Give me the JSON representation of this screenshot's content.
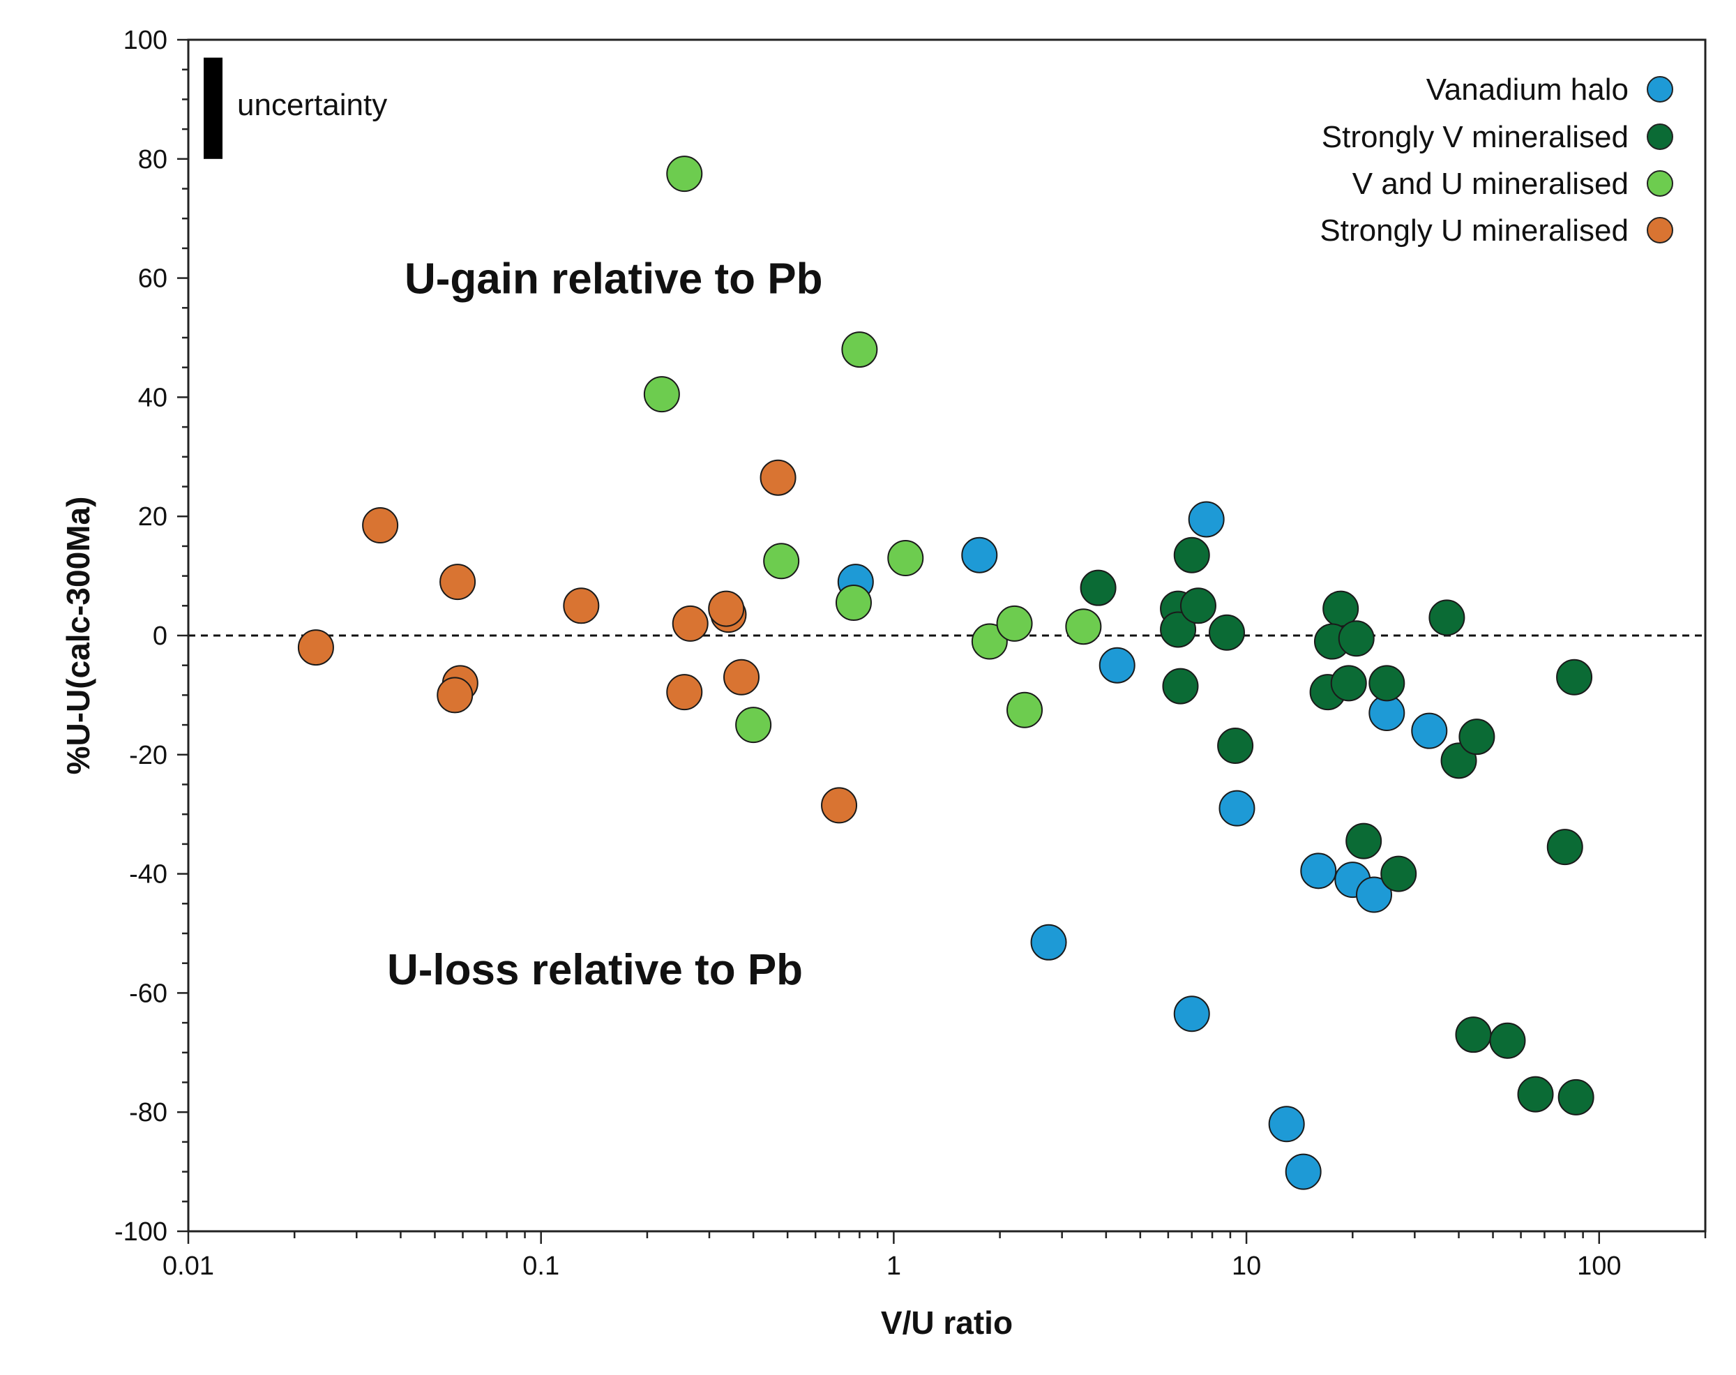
{
  "chart_data": {
    "type": "scatter",
    "xscale": "log",
    "xlim": [
      0.01,
      200
    ],
    "ylim": [
      -100,
      100
    ],
    "xlabel": "V/U ratio",
    "ylabel": "%U-U(calc-300Ma)",
    "x_ticks": [
      0.01,
      0.1,
      1,
      10,
      100
    ],
    "x_tick_labels": [
      "0.01",
      "0.1",
      "1",
      "10",
      "100"
    ],
    "y_ticks": [
      100,
      80,
      60,
      40,
      20,
      0,
      -20,
      -40,
      -60,
      -80,
      -100
    ],
    "y_tick_labels": [
      "100",
      "80",
      "60",
      "40",
      "20",
      "0",
      "-20",
      "-40",
      "-60",
      "-80",
      "-100"
    ],
    "reference_line": {
      "y": 0,
      "style": "dashed"
    },
    "annotations": [
      {
        "text": "U-gain relative to Pb",
        "x": 0.12,
        "y": 60
      },
      {
        "text": "U-loss relative to Pb",
        "x": 0.11,
        "y": -56
      }
    ],
    "uncertainty": {
      "label": "uncertainty",
      "y_from": 80,
      "y_to": 97
    },
    "legend_position": "top-right",
    "series": [
      {
        "name": "Vanadium halo",
        "color": "#1e9ad6",
        "points": [
          [
            0.78,
            9
          ],
          [
            1.75,
            13.5
          ],
          [
            7.7,
            19.5
          ],
          [
            4.3,
            -5
          ],
          [
            9.4,
            -29
          ],
          [
            2.75,
            -51.5
          ],
          [
            7.0,
            -63.5
          ],
          [
            16,
            -39.5
          ],
          [
            20,
            -41
          ],
          [
            23,
            -43.5
          ],
          [
            25,
            -13
          ],
          [
            33,
            -16
          ],
          [
            13,
            -82
          ],
          [
            14.5,
            -90
          ]
        ]
      },
      {
        "name": "Strongly V mineralised",
        "color": "#0b6b35",
        "points": [
          [
            3.8,
            8
          ],
          [
            6.4,
            4.5
          ],
          [
            6.4,
            1
          ],
          [
            7.0,
            13.5
          ],
          [
            7.3,
            5
          ],
          [
            8.8,
            0.5
          ],
          [
            6.5,
            -8.5
          ],
          [
            9.3,
            -18.5
          ],
          [
            18.5,
            4.5
          ],
          [
            17.5,
            -1
          ],
          [
            20.5,
            -0.5
          ],
          [
            17,
            -9.5
          ],
          [
            19.5,
            -8
          ],
          [
            25,
            -8
          ],
          [
            21.5,
            -34.5
          ],
          [
            27,
            -40
          ],
          [
            37,
            3
          ],
          [
            40,
            -21
          ],
          [
            45,
            -17
          ],
          [
            85,
            -7
          ],
          [
            80,
            -35.5
          ],
          [
            44,
            -67
          ],
          [
            55,
            -68
          ],
          [
            66,
            -77
          ],
          [
            86,
            -77.5
          ]
        ]
      },
      {
        "name": "V and U mineralised",
        "color": "#6dcc4f",
        "points": [
          [
            0.255,
            77.5
          ],
          [
            0.22,
            40.5
          ],
          [
            0.8,
            48
          ],
          [
            0.48,
            12.5
          ],
          [
            0.77,
            5.5
          ],
          [
            1.08,
            13
          ],
          [
            0.4,
            -15
          ],
          [
            1.87,
            -1
          ],
          [
            2.2,
            2
          ],
          [
            2.35,
            -12.5
          ],
          [
            3.45,
            1.5
          ]
        ]
      },
      {
        "name": "Strongly U mineralised",
        "color": "#d97432",
        "points": [
          [
            0.023,
            -2
          ],
          [
            0.035,
            18.5
          ],
          [
            0.058,
            9
          ],
          [
            0.059,
            -8
          ],
          [
            0.057,
            -10
          ],
          [
            0.13,
            5
          ],
          [
            0.255,
            -9.5
          ],
          [
            0.265,
            2
          ],
          [
            0.34,
            3.5
          ],
          [
            0.335,
            4.5
          ],
          [
            0.37,
            -7
          ],
          [
            0.47,
            26.5
          ],
          [
            0.7,
            -28.5
          ]
        ]
      }
    ]
  }
}
